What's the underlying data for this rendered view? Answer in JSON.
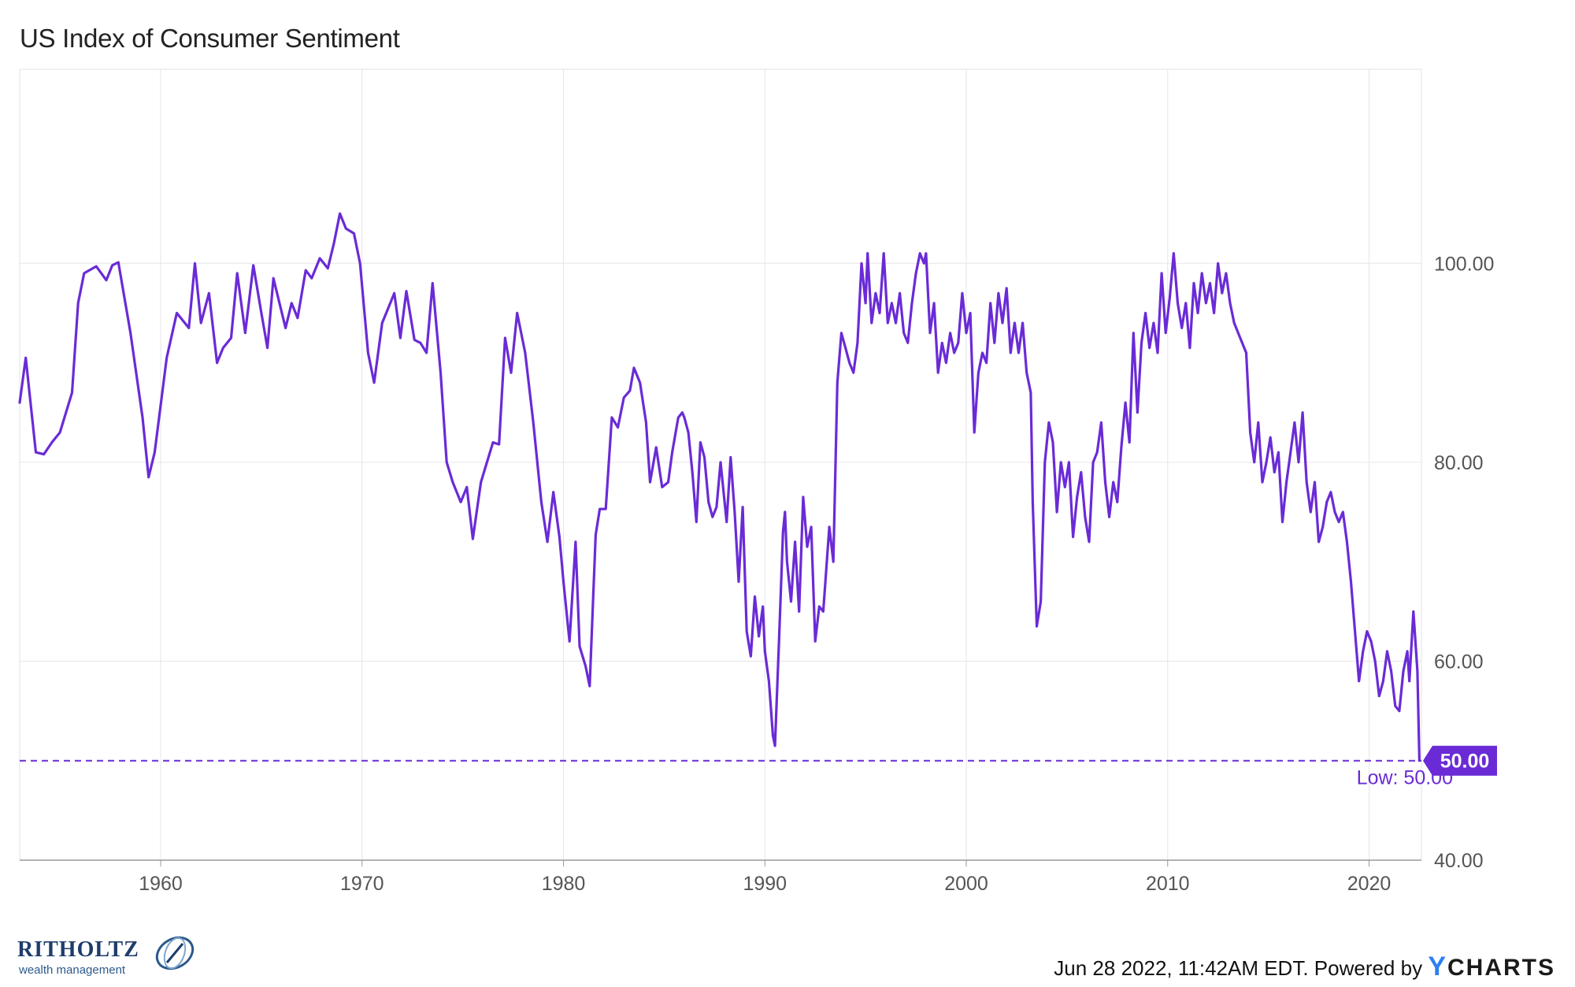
{
  "chart_data": {
    "type": "line",
    "title": "US Index of Consumer Sentiment",
    "y_ticks": [
      "100.00",
      "80.00",
      "60.00",
      "40.00"
    ],
    "x_ticks": [
      "1960",
      "1970",
      "1980",
      "1990",
      "2000",
      "2010",
      "2020"
    ],
    "xlim": [
      1953.0,
      2022.6
    ],
    "ylim": [
      40,
      119.5
    ],
    "reference_line": {
      "value": 50,
      "label": "Low: 50.00",
      "style": "dashed"
    },
    "current_value_label": "50.00",
    "line_color": "#6a2bd6",
    "series": [
      {
        "values": [
          [
            1953.0,
            86
          ],
          [
            1953.3,
            90.5
          ],
          [
            1953.8,
            81
          ],
          [
            1954.2,
            80.8
          ],
          [
            1954.6,
            82
          ],
          [
            1955.0,
            83
          ],
          [
            1955.6,
            87
          ],
          [
            1955.9,
            96
          ],
          [
            1956.2,
            99
          ],
          [
            1956.8,
            99.7
          ],
          [
            1957.3,
            98.3
          ],
          [
            1957.6,
            99.8
          ],
          [
            1957.9,
            100.1
          ],
          [
            1958.5,
            93
          ],
          [
            1959.1,
            84.5
          ],
          [
            1959.4,
            78.5
          ],
          [
            1959.7,
            81
          ],
          [
            1960.3,
            90.5
          ],
          [
            1960.8,
            95
          ],
          [
            1961.2,
            94
          ],
          [
            1961.4,
            93.5
          ],
          [
            1961.7,
            100
          ],
          [
            1962.0,
            94
          ],
          [
            1962.4,
            97
          ],
          [
            1962.8,
            90
          ],
          [
            1963.1,
            91.5
          ],
          [
            1963.5,
            92.5
          ],
          [
            1963.8,
            99
          ],
          [
            1964.2,
            93
          ],
          [
            1964.6,
            99.8
          ],
          [
            1965.0,
            95
          ],
          [
            1965.3,
            91.5
          ],
          [
            1965.6,
            98.5
          ],
          [
            1966.2,
            93.5
          ],
          [
            1966.5,
            96
          ],
          [
            1966.8,
            94.5
          ],
          [
            1967.2,
            99.3
          ],
          [
            1967.5,
            98.5
          ],
          [
            1967.9,
            100.5
          ],
          [
            1968.3,
            99.5
          ],
          [
            1968.6,
            102
          ],
          [
            1968.9,
            105
          ],
          [
            1969.2,
            103.5
          ],
          [
            1969.6,
            103
          ],
          [
            1969.9,
            100
          ],
          [
            1970.3,
            91
          ],
          [
            1970.6,
            88
          ],
          [
            1971.0,
            94
          ],
          [
            1971.4,
            96
          ],
          [
            1971.6,
            97
          ],
          [
            1971.9,
            92.5
          ],
          [
            1972.2,
            97.2
          ],
          [
            1972.6,
            92.3
          ],
          [
            1972.9,
            92
          ],
          [
            1973.2,
            91
          ],
          [
            1973.5,
            98
          ],
          [
            1973.9,
            89
          ],
          [
            1974.2,
            80
          ],
          [
            1974.5,
            78
          ],
          [
            1974.9,
            76
          ],
          [
            1975.2,
            77.5
          ],
          [
            1975.5,
            72.3
          ],
          [
            1975.9,
            78
          ],
          [
            1976.5,
            82
          ],
          [
            1976.8,
            81.8
          ],
          [
            1977.1,
            92.5
          ],
          [
            1977.4,
            89
          ],
          [
            1977.7,
            95
          ],
          [
            1978.1,
            91
          ],
          [
            1978.5,
            84
          ],
          [
            1978.9,
            76
          ],
          [
            1979.2,
            72
          ],
          [
            1979.5,
            77
          ],
          [
            1979.8,
            72.5
          ],
          [
            1980.0,
            68
          ],
          [
            1980.3,
            62
          ],
          [
            1980.6,
            72
          ],
          [
            1980.8,
            61.5
          ],
          [
            1981.1,
            59.5
          ],
          [
            1981.3,
            57.5
          ],
          [
            1981.6,
            72.7
          ],
          [
            1981.8,
            75.3
          ],
          [
            1982.1,
            75.3
          ],
          [
            1982.4,
            84.5
          ],
          [
            1982.7,
            83.5
          ],
          [
            1983.0,
            86.5
          ],
          [
            1983.3,
            87.2
          ],
          [
            1983.5,
            89.5
          ],
          [
            1983.8,
            88
          ],
          [
            1984.1,
            84
          ],
          [
            1984.3,
            78
          ],
          [
            1984.6,
            81.5
          ],
          [
            1984.9,
            77.5
          ],
          [
            1985.2,
            78
          ],
          [
            1985.4,
            81
          ],
          [
            1985.7,
            84.5
          ],
          [
            1985.9,
            85
          ],
          [
            1986.0,
            84.5
          ],
          [
            1986.2,
            83
          ],
          [
            1986.4,
            79
          ],
          [
            1986.6,
            74
          ],
          [
            1986.8,
            82
          ],
          [
            1987.0,
            80.5
          ],
          [
            1987.2,
            76
          ],
          [
            1987.4,
            74.5
          ],
          [
            1987.6,
            75.5
          ],
          [
            1987.8,
            80
          ],
          [
            1988.1,
            74
          ],
          [
            1988.3,
            80.5
          ],
          [
            1988.5,
            75
          ],
          [
            1988.7,
            68
          ],
          [
            1988.9,
            75.5
          ],
          [
            1989.1,
            63
          ],
          [
            1989.3,
            60.5
          ],
          [
            1989.5,
            66.5
          ],
          [
            1989.7,
            62.5
          ],
          [
            1989.9,
            65.5
          ],
          [
            1990.0,
            61
          ],
          [
            1990.2,
            58
          ],
          [
            1990.4,
            52.5
          ],
          [
            1990.5,
            51.5
          ],
          [
            1990.7,
            62
          ],
          [
            1990.9,
            73
          ],
          [
            1991.0,
            75
          ],
          [
            1991.1,
            70
          ],
          [
            1991.3,
            66
          ],
          [
            1991.5,
            72
          ],
          [
            1991.7,
            65
          ],
          [
            1991.9,
            76.5
          ],
          [
            1992.1,
            71.5
          ],
          [
            1992.3,
            73.5
          ],
          [
            1992.5,
            62
          ],
          [
            1992.7,
            65.5
          ],
          [
            1992.9,
            65
          ],
          [
            1993.2,
            73.5
          ],
          [
            1993.4,
            70
          ],
          [
            1993.6,
            88
          ],
          [
            1993.8,
            93
          ],
          [
            1994.0,
            91.5
          ],
          [
            1994.2,
            90
          ],
          [
            1994.4,
            89
          ],
          [
            1994.6,
            92
          ],
          [
            1994.8,
            100
          ],
          [
            1995.0,
            96
          ],
          [
            1995.1,
            101
          ],
          [
            1995.3,
            94
          ],
          [
            1995.5,
            97
          ],
          [
            1995.7,
            95
          ],
          [
            1995.9,
            101
          ],
          [
            1996.1,
            94
          ],
          [
            1996.3,
            96
          ],
          [
            1996.5,
            94
          ],
          [
            1996.7,
            97
          ],
          [
            1996.9,
            93
          ],
          [
            1997.1,
            92
          ],
          [
            1997.3,
            96
          ],
          [
            1997.5,
            99
          ],
          [
            1997.7,
            101
          ],
          [
            1997.9,
            100
          ],
          [
            1998.0,
            101
          ],
          [
            1998.2,
            93
          ],
          [
            1998.4,
            96
          ],
          [
            1998.6,
            89
          ],
          [
            1998.8,
            92
          ],
          [
            1999.0,
            90
          ],
          [
            1999.2,
            93
          ],
          [
            1999.4,
            91
          ],
          [
            1999.6,
            92
          ],
          [
            1999.8,
            97
          ],
          [
            2000.0,
            93
          ],
          [
            2000.2,
            95
          ],
          [
            2000.4,
            83
          ],
          [
            2000.6,
            89
          ],
          [
            2000.8,
            91
          ],
          [
            2001.0,
            90
          ],
          [
            2001.2,
            96
          ],
          [
            2001.4,
            92
          ],
          [
            2001.6,
            97
          ],
          [
            2001.8,
            94
          ],
          [
            2002.0,
            97.5
          ],
          [
            2002.2,
            91
          ],
          [
            2002.4,
            94
          ],
          [
            2002.6,
            91
          ],
          [
            2002.8,
            94
          ],
          [
            2003.0,
            89
          ],
          [
            2003.2,
            87
          ],
          [
            2003.3,
            76
          ],
          [
            2003.5,
            63.5
          ],
          [
            2003.7,
            66
          ],
          [
            2003.9,
            80
          ],
          [
            2004.1,
            84
          ],
          [
            2004.3,
            82
          ],
          [
            2004.5,
            75
          ],
          [
            2004.7,
            80
          ],
          [
            2004.9,
            77.5
          ],
          [
            2005.1,
            80
          ],
          [
            2005.3,
            72.5
          ],
          [
            2005.5,
            76.5
          ],
          [
            2005.7,
            79
          ],
          [
            2005.9,
            74.5
          ],
          [
            2006.1,
            72
          ],
          [
            2006.3,
            80
          ],
          [
            2006.5,
            81
          ],
          [
            2006.7,
            84
          ],
          [
            2006.9,
            78
          ],
          [
            2007.1,
            74.5
          ],
          [
            2007.3,
            78
          ],
          [
            2007.5,
            76
          ],
          [
            2007.7,
            81.5
          ],
          [
            2007.9,
            86
          ],
          [
            2008.1,
            82
          ],
          [
            2008.3,
            93
          ],
          [
            2008.5,
            85
          ],
          [
            2008.7,
            92
          ],
          [
            2008.9,
            95
          ],
          [
            2009.1,
            91.5
          ],
          [
            2009.3,
            94
          ],
          [
            2009.5,
            91
          ],
          [
            2009.7,
            99
          ],
          [
            2009.9,
            93
          ],
          [
            2010.1,
            96.5
          ],
          [
            2010.3,
            101
          ],
          [
            2010.5,
            96
          ],
          [
            2010.7,
            93.5
          ],
          [
            2010.9,
            96
          ],
          [
            2011.1,
            91.5
          ],
          [
            2011.3,
            98
          ],
          [
            2011.5,
            95
          ],
          [
            2011.7,
            99
          ],
          [
            2011.9,
            96
          ],
          [
            2012.1,
            98
          ],
          [
            2012.3,
            95
          ],
          [
            2012.5,
            100
          ],
          [
            2012.7,
            97
          ],
          [
            2012.9,
            99
          ],
          [
            2013.1,
            96
          ],
          [
            2013.3,
            94
          ],
          [
            2013.5,
            93
          ],
          [
            2013.7,
            92
          ],
          [
            2013.9,
            91
          ],
          [
            2014.1,
            83
          ],
          [
            2014.3,
            80
          ],
          [
            2014.5,
            84
          ],
          [
            2014.7,
            78
          ],
          [
            2014.9,
            80
          ],
          [
            2015.1,
            82.5
          ],
          [
            2015.3,
            79
          ],
          [
            2015.5,
            81
          ],
          [
            2015.7,
            74
          ],
          [
            2015.9,
            78
          ],
          [
            2016.1,
            81
          ],
          [
            2016.3,
            84
          ],
          [
            2016.5,
            80
          ],
          [
            2016.7,
            85
          ],
          [
            2016.9,
            78
          ],
          [
            2017.1,
            75
          ],
          [
            2017.3,
            78
          ],
          [
            2017.5,
            72
          ],
          [
            2017.7,
            73.5
          ],
          [
            2017.9,
            76
          ],
          [
            2018.1,
            77
          ],
          [
            2018.3,
            75
          ],
          [
            2018.5,
            74
          ],
          [
            2018.7,
            75
          ],
          [
            2018.9,
            72
          ],
          [
            2019.1,
            68
          ],
          [
            2019.3,
            63
          ],
          [
            2019.5,
            58
          ],
          [
            2019.7,
            61
          ],
          [
            2019.9,
            63
          ],
          [
            2020.1,
            62
          ],
          [
            2020.3,
            60
          ],
          [
            2020.5,
            56.5
          ],
          [
            2020.7,
            58
          ],
          [
            2020.9,
            61
          ],
          [
            2021.1,
            59
          ],
          [
            2021.3,
            55.5
          ],
          [
            2021.5,
            55
          ],
          [
            2021.7,
            59
          ],
          [
            2021.9,
            61
          ],
          [
            2022.0,
            58
          ],
          [
            2022.2,
            65
          ],
          [
            2022.4,
            59
          ],
          [
            2022.5,
            50
          ]
        ]
      }
    ]
  },
  "footer": {
    "timestamp_text": "Jun 28 2022, 11:42AM EDT. Powered by",
    "brand_y": "Y",
    "brand_rest": "CHARTS"
  },
  "logo": {
    "name": "RITHOLTZ",
    "subtitle": "wealth management"
  }
}
